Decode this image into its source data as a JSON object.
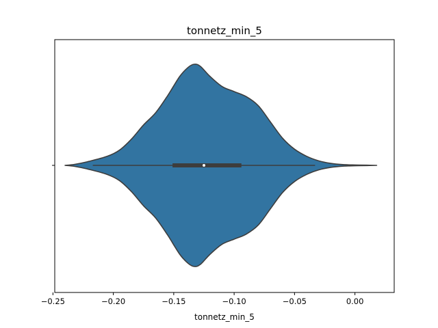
{
  "chart_data": {
    "type": "violin",
    "title": "tonnetz_min_5",
    "xlabel": "tonnetz_min_5",
    "ylabel": "",
    "xlim": [
      -0.2485,
      0.0325
    ],
    "x_ticks": [
      -0.25,
      -0.2,
      -0.15,
      -0.1,
      -0.05,
      0.0
    ],
    "x_tick_labels": [
      "−0.25",
      "−0.20",
      "−0.15",
      "−0.10",
      "−0.05",
      "0.00"
    ],
    "fill_color": "#3274a1",
    "edge_color": "#3d3d3d",
    "summary": {
      "whisker_low": -0.217,
      "q1": -0.151,
      "median": -0.125,
      "q3": -0.094,
      "whisker_high": -0.033
    },
    "density_profile": [
      {
        "x": -0.24,
        "density": 0.0
      },
      {
        "x": -0.232,
        "density": 0.01
      },
      {
        "x": -0.22,
        "density": 0.04
      },
      {
        "x": -0.205,
        "density": 0.09
      },
      {
        "x": -0.195,
        "density": 0.15
      },
      {
        "x": -0.185,
        "density": 0.26
      },
      {
        "x": -0.175,
        "density": 0.4
      },
      {
        "x": -0.165,
        "density": 0.52
      },
      {
        "x": -0.155,
        "density": 0.69
      },
      {
        "x": -0.145,
        "density": 0.88
      },
      {
        "x": -0.138,
        "density": 0.97
      },
      {
        "x": -0.133,
        "density": 1.0
      },
      {
        "x": -0.128,
        "density": 0.98
      },
      {
        "x": -0.12,
        "density": 0.88
      },
      {
        "x": -0.11,
        "density": 0.78
      },
      {
        "x": -0.1,
        "density": 0.73
      },
      {
        "x": -0.09,
        "density": 0.68
      },
      {
        "x": -0.08,
        "density": 0.59
      },
      {
        "x": -0.07,
        "density": 0.43
      },
      {
        "x": -0.06,
        "density": 0.27
      },
      {
        "x": -0.05,
        "density": 0.16
      },
      {
        "x": -0.04,
        "density": 0.09
      },
      {
        "x": -0.03,
        "density": 0.045
      },
      {
        "x": -0.02,
        "density": 0.02
      },
      {
        "x": -0.01,
        "density": 0.008
      },
      {
        "x": 0.0,
        "density": 0.004
      },
      {
        "x": 0.01,
        "density": 0.002
      },
      {
        "x": 0.018,
        "density": 0.0
      }
    ]
  }
}
